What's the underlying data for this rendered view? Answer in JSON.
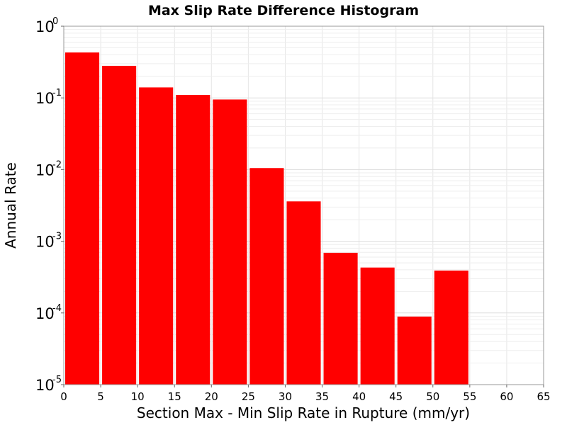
{
  "chart_data": {
    "type": "bar",
    "title": "Max Slip Rate Difference Histogram",
    "xlabel": "Section Max - Min Slip Rate in Rupture (mm/yr)",
    "ylabel": "Annual Rate",
    "xlim": [
      0,
      65
    ],
    "ylim": [
      1e-05,
      1
    ],
    "yscale": "log",
    "bin_width": 5,
    "bar_color": "#ff0000",
    "grid": true,
    "x_ticks": [
      "0",
      "5",
      "10",
      "15",
      "20",
      "25",
      "30",
      "35",
      "40",
      "45",
      "50",
      "55",
      "60",
      "65"
    ],
    "y_ticks": [
      {
        "base": "10",
        "exp": "0"
      },
      {
        "base": "10",
        "exp": "-1"
      },
      {
        "base": "10",
        "exp": "-2"
      },
      {
        "base": "10",
        "exp": "-3"
      },
      {
        "base": "10",
        "exp": "-4"
      },
      {
        "base": "10",
        "exp": "-5"
      }
    ],
    "bins": [
      {
        "x_start": 0,
        "value": 0.43
      },
      {
        "x_start": 5,
        "value": 0.28
      },
      {
        "x_start": 10,
        "value": 0.14
      },
      {
        "x_start": 15,
        "value": 0.11
      },
      {
        "x_start": 20,
        "value": 0.095
      },
      {
        "x_start": 25,
        "value": 0.0105
      },
      {
        "x_start": 30,
        "value": 0.0036
      },
      {
        "x_start": 35,
        "value": 0.00069
      },
      {
        "x_start": 40,
        "value": 0.00043
      },
      {
        "x_start": 45,
        "value": 8.9e-05
      },
      {
        "x_start": 50,
        "value": 0.00039
      }
    ]
  }
}
